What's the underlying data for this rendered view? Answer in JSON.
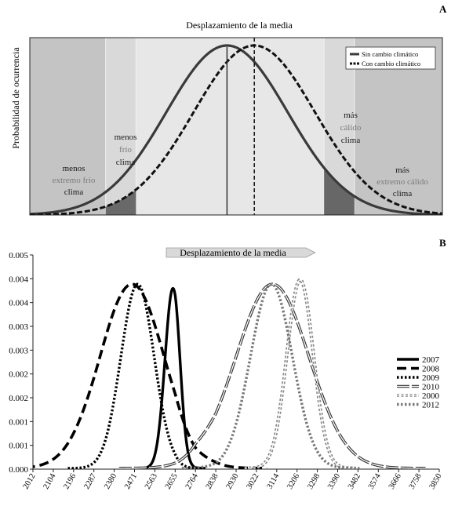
{
  "chart_data": [
    {
      "panel_letter": "A",
      "type": "area",
      "title": "Desplazamiento de la media",
      "ylabel": "Probabilidad de ocurrencia",
      "xlabel": "",
      "grid": false,
      "legend_placement": "top-right",
      "series": [
        {
          "name": "Sin cambio climático",
          "style": "solid",
          "color": "#3a3a3a",
          "mean": 0,
          "sd": 1
        },
        {
          "name": "Con cambio climático",
          "style": "dashed",
          "color": "#111111",
          "mean": 0.45,
          "sd": 1
        }
      ],
      "regions": [
        {
          "lines": [
            "menos",
            "extremo frío",
            "clima"
          ],
          "label_colors": [
            "#1a1a1a",
            "#7a7a7a",
            "#1a1a1a"
          ]
        },
        {
          "lines": [
            "menos",
            "frío",
            "clima"
          ],
          "label_colors": [
            "#1a1a1a",
            "#7a7a7a",
            "#1a1a1a"
          ]
        },
        {
          "lines": [
            "más",
            "cálido",
            "clima"
          ],
          "label_colors": [
            "#1a1a1a",
            "#7a7a7a",
            "#1a1a1a"
          ]
        },
        {
          "lines": [
            "más",
            "extremo cálido",
            "clima"
          ],
          "label_colors": [
            "#1a1a1a",
            "#7a7a7a",
            "#1a1a1a"
          ]
        }
      ]
    },
    {
      "panel_letter": "B",
      "type": "line",
      "title": "Desplazamiento de la media",
      "xlabel": "",
      "ylabel": "",
      "grid": false,
      "legend_placement": "right",
      "x_ticks": [
        2012,
        2104,
        2196,
        2287,
        2380,
        2471,
        2563,
        2655,
        2764,
        2838,
        2930,
        3022,
        3114,
        3206,
        3298,
        3390,
        3482,
        3574,
        3666,
        3758,
        3850
      ],
      "y_ticks": [
        "0.000",
        "0.001",
        "0.001",
        "0.002",
        "0.002",
        "0.003",
        "0.003",
        "0.004",
        "0.004",
        "0.005"
      ],
      "ylim": [
        0,
        0.005
      ],
      "series": [
        {
          "name": "2007",
          "style": "solid-thick",
          "color": "#000000",
          "mean": 2645,
          "sd": 36,
          "peak": 0.0042
        },
        {
          "name": "2008",
          "style": "long-dash",
          "color": "#000000",
          "mean": 2460,
          "sd": 145,
          "peak": 0.0043
        },
        {
          "name": "2009",
          "style": "dotted",
          "color": "#000000",
          "mean": 2485,
          "sd": 75,
          "peak": 0.0043
        },
        {
          "name": "2010",
          "style": "double-line",
          "color": "#333333",
          "mean": 3095,
          "sd": 165,
          "peak": 0.0043
        },
        {
          "name": "2000",
          "style": "double-dotted",
          "color": "#888888",
          "mean": 3220,
          "sd": 60,
          "peak": 0.0044
        },
        {
          "name": "2012",
          "style": "gray-dotted",
          "color": "#777777",
          "mean": 3090,
          "sd": 95,
          "peak": 0.0043
        }
      ]
    }
  ]
}
